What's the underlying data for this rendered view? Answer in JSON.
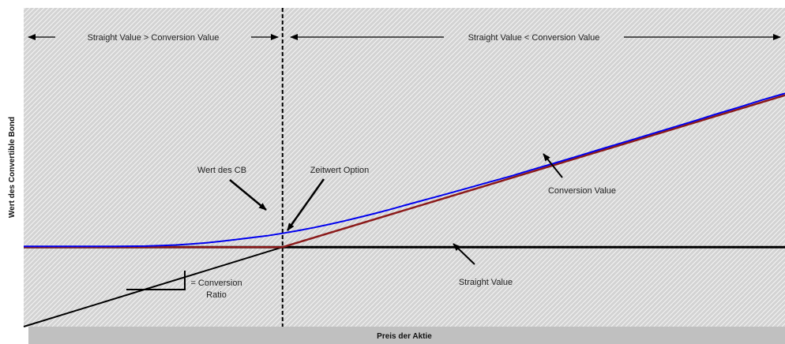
{
  "chart_data": {
    "type": "line",
    "title": "",
    "xlabel": "Preis der Aktie",
    "ylabel": "Wert des Convertible Bond",
    "xlim": [
      0,
      100
    ],
    "ylim": [
      0,
      100
    ],
    "grid": false,
    "legend": "none",
    "x_ticks_labeled": false,
    "y_ticks_labeled": false,
    "conversion_point": {
      "x": 34,
      "y": 30
    },
    "series": [
      {
        "name": "",
        "color": "#0000ee",
        "x": [
          0,
          4,
          8,
          12,
          16,
          18,
          20,
          22,
          24,
          26,
          28,
          30,
          32,
          34,
          36,
          38,
          40,
          42,
          44,
          46,
          48,
          50,
          52,
          55,
          58,
          61,
          64,
          67,
          70,
          73,
          76,
          79,
          82,
          85,
          88,
          91,
          94,
          97,
          100
        ],
        "y": [
          30.3,
          30.3,
          30.3,
          30.3,
          30.4,
          30.6,
          30.8,
          31.2,
          31.6,
          32.2,
          32.9,
          33.6,
          34.3,
          35.2,
          36.2,
          37.3,
          38.5,
          39.8,
          41.2,
          42.6,
          44.1,
          45.7,
          47.3,
          49.6,
          52.0,
          54.4,
          56.8,
          59.4,
          61.9,
          64.5,
          67.1,
          69.7,
          72.3,
          74.9,
          77.5,
          80.2,
          82.8,
          85.5,
          88.0
        ]
      },
      {
        "name": "Conversion Value",
        "color": "#8b1a1a",
        "x": [
          0,
          34,
          100
        ],
        "y": [
          30,
          30,
          87.3
        ]
      },
      {
        "name": "Straight Value",
        "color": "#000000",
        "x": [
          0,
          100
        ],
        "y": [
          30,
          30
        ]
      },
      {
        "name": "",
        "color": "#000000",
        "x": [
          0,
          34
        ],
        "y": [
          0,
          30
        ]
      }
    ],
    "annotations": {
      "left_region": "Straight Value > Conversion Value",
      "right_region": "Straight Value < Conversion Value",
      "wert_cb": "Wert des CB",
      "zeitwert": "Zeitwert Option",
      "conversion_value": "Conversion Value",
      "straight_value": "Straight Value",
      "ratio_line1": "= Conversion",
      "ratio_line2": "Ratio"
    }
  },
  "colors": {
    "plot_bg": "#d3d3d3",
    "hatch": "#f4f4f4",
    "shadow": "#c0c0c0",
    "cb_line": "#0000ee",
    "conversion_line": "#8b1a1a",
    "straight_line": "#000000"
  }
}
